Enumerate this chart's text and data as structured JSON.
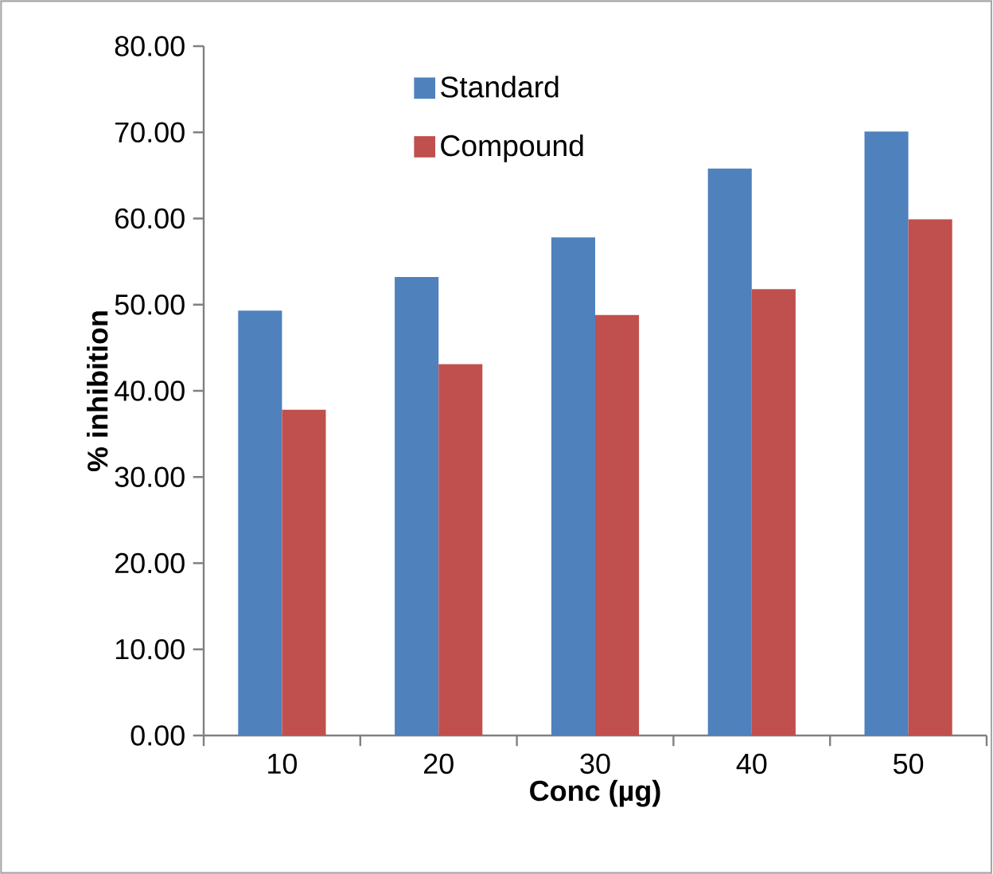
{
  "chart_data": {
    "type": "bar",
    "xlabel": "Conc (µg)",
    "ylabel": "% inhibition",
    "categories": [
      "10",
      "20",
      "30",
      "40",
      "50"
    ],
    "series": [
      {
        "name": "Standard",
        "color": "#4f81bd",
        "values": [
          49.3,
          53.2,
          57.8,
          65.8,
          70.1
        ]
      },
      {
        "name": "Compound",
        "color": "#c0504d",
        "values": [
          37.8,
          43.1,
          48.8,
          51.8,
          59.9
        ]
      }
    ],
    "ylim": [
      0,
      80
    ],
    "yticks": [
      {
        "value": 0,
        "label": "0.00"
      },
      {
        "value": 10,
        "label": "10.00"
      },
      {
        "value": 20,
        "label": "20.00"
      },
      {
        "value": 30,
        "label": "30.00"
      },
      {
        "value": 40,
        "label": "40.00"
      },
      {
        "value": 50,
        "label": "50.00"
      },
      {
        "value": 60,
        "label": "60.00"
      },
      {
        "value": 70,
        "label": "70.00"
      },
      {
        "value": 80,
        "label": "80.00"
      }
    ],
    "grid": false,
    "legend": "top"
  }
}
